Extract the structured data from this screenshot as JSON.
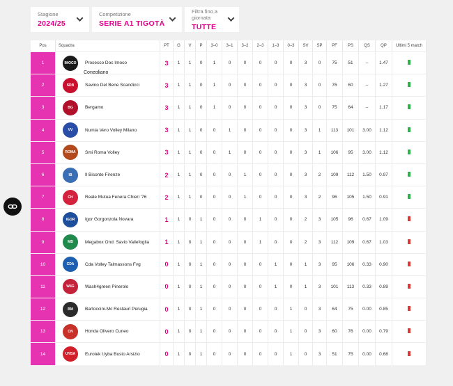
{
  "filters": {
    "stagione": {
      "label": "Stagione",
      "value": "2024/25"
    },
    "competizione": {
      "label": "Competizione",
      "value": "SERIE A1 TIGOTÀ"
    },
    "giornata": {
      "label": "Filtra fino a giornata",
      "value": "TUTTE"
    }
  },
  "table": {
    "headers": [
      "Pos",
      "Squadra",
      "PT",
      "G",
      "V",
      "P",
      "3–0",
      "3–1",
      "3–2",
      "2–3",
      "1–3",
      "0–3",
      "SV",
      "SP",
      "PF",
      "PS",
      "QS",
      "QP",
      "Ultimi 5 match"
    ],
    "rows": [
      {
        "pos": "1",
        "team": "Prosecco Doc Imoco",
        "team2": "Conegliano",
        "logo_color": "#1a1a1a",
        "logo_text": "IMOCO",
        "pt": "3",
        "g": "1",
        "v": "1",
        "p": "0",
        "w30": "1",
        "w31": "0",
        "w32": "0",
        "l23": "0",
        "l13": "0",
        "l03": "0",
        "sv": "3",
        "sp": "0",
        "pf": "75",
        "ps": "51",
        "qs": "–",
        "qp": "1.47",
        "trend": "up"
      },
      {
        "pos": "2",
        "team": "Savino Del Bene Scandicci",
        "team2": "",
        "logo_color": "#c8102e",
        "logo_text": "SDB",
        "pt": "3",
        "g": "1",
        "v": "1",
        "p": "0",
        "w30": "1",
        "w31": "0",
        "w32": "0",
        "l23": "0",
        "l13": "0",
        "l03": "0",
        "sv": "3",
        "sp": "0",
        "pf": "76",
        "ps": "60",
        "qs": "–",
        "qp": "1.27",
        "trend": "up"
      },
      {
        "pos": "3",
        "team": "Bergamo",
        "team2": "",
        "logo_color": "#b0102a",
        "logo_text": "BG",
        "pt": "3",
        "g": "1",
        "v": "1",
        "p": "0",
        "w30": "1",
        "w31": "0",
        "w32": "0",
        "l23": "0",
        "l13": "0",
        "l03": "0",
        "sv": "3",
        "sp": "0",
        "pf": "75",
        "ps": "64",
        "qs": "–",
        "qp": "1.17",
        "trend": "up"
      },
      {
        "pos": "4",
        "team": "Numia Vero Volley Milano",
        "team2": "",
        "logo_color": "#2a4da8",
        "logo_text": "VV",
        "pt": "3",
        "g": "1",
        "v": "1",
        "p": "0",
        "w30": "0",
        "w31": "1",
        "w32": "0",
        "l23": "0",
        "l13": "0",
        "l03": "0",
        "sv": "3",
        "sp": "1",
        "pf": "113",
        "ps": "101",
        "qs": "3.00",
        "qp": "1.12",
        "trend": "up"
      },
      {
        "pos": "5",
        "team": "Smi Roma Volley",
        "team2": "",
        "logo_color": "#b34a1e",
        "logo_text": "ROMA",
        "pt": "3",
        "g": "1",
        "v": "1",
        "p": "0",
        "w30": "0",
        "w31": "1",
        "w32": "0",
        "l23": "0",
        "l13": "0",
        "l03": "0",
        "sv": "3",
        "sp": "1",
        "pf": "106",
        "ps": "95",
        "qs": "3.00",
        "qp": "1.12",
        "trend": "up"
      },
      {
        "pos": "6",
        "team": "Il Bisonte Firenze",
        "team2": "",
        "logo_color": "#3a6fb5",
        "logo_text": "IB",
        "pt": "2",
        "g": "1",
        "v": "1",
        "p": "0",
        "w30": "0",
        "w31": "0",
        "w32": "1",
        "l23": "0",
        "l13": "0",
        "l03": "0",
        "sv": "3",
        "sp": "2",
        "pf": "109",
        "ps": "112",
        "qs": "1.50",
        "qp": "0.97",
        "trend": "up"
      },
      {
        "pos": "7",
        "team": "Reale Mutua Fenera Chieri '76",
        "team2": "",
        "logo_color": "#d4213d",
        "logo_text": "CH",
        "pt": "2",
        "g": "1",
        "v": "1",
        "p": "0",
        "w30": "0",
        "w31": "0",
        "w32": "1",
        "l23": "0",
        "l13": "0",
        "l03": "0",
        "sv": "3",
        "sp": "2",
        "pf": "96",
        "ps": "105",
        "qs": "1.50",
        "qp": "0.91",
        "trend": "up"
      },
      {
        "pos": "8",
        "team": "Igor Gorgonzola Novara",
        "team2": "",
        "logo_color": "#1e4f9c",
        "logo_text": "IGOR",
        "pt": "1",
        "g": "1",
        "v": "0",
        "p": "1",
        "w30": "0",
        "w31": "0",
        "w32": "0",
        "l23": "1",
        "l13": "0",
        "l03": "0",
        "sv": "2",
        "sp": "3",
        "pf": "105",
        "ps": "96",
        "qs": "0.67",
        "qp": "1.09",
        "trend": "down"
      },
      {
        "pos": "9",
        "team": "Megabox Ond. Savio Vallefoglia",
        "team2": "",
        "logo_color": "#1f8a4c",
        "logo_text": "MB",
        "pt": "1",
        "g": "1",
        "v": "0",
        "p": "1",
        "w30": "0",
        "w31": "0",
        "w32": "0",
        "l23": "1",
        "l13": "0",
        "l03": "0",
        "sv": "2",
        "sp": "3",
        "pf": "112",
        "ps": "109",
        "qs": "0.67",
        "qp": "1.03",
        "trend": "down"
      },
      {
        "pos": "10",
        "team": "Cda Volley Talmassons Fvg",
        "team2": "",
        "logo_color": "#1d5fb0",
        "logo_text": "CDA",
        "pt": "0",
        "g": "1",
        "v": "0",
        "p": "1",
        "w30": "0",
        "w31": "0",
        "w32": "0",
        "l23": "0",
        "l13": "1",
        "l03": "0",
        "sv": "1",
        "sp": "3",
        "pf": "95",
        "ps": "106",
        "qs": "0.33",
        "qp": "0.90",
        "trend": "down"
      },
      {
        "pos": "11",
        "team": "Wash4green Pinerolo",
        "team2": "",
        "logo_color": "#c4213a",
        "logo_text": "W4G",
        "pt": "0",
        "g": "1",
        "v": "0",
        "p": "1",
        "w30": "0",
        "w31": "0",
        "w32": "0",
        "l23": "0",
        "l13": "1",
        "l03": "0",
        "sv": "1",
        "sp": "3",
        "pf": "101",
        "ps": "113",
        "qs": "0.33",
        "qp": "0.89",
        "trend": "down"
      },
      {
        "pos": "12",
        "team": "Bartoccini-Mc Restauri Perugia",
        "team2": "",
        "logo_color": "#2b2b2b",
        "logo_text": "BM",
        "pt": "0",
        "g": "1",
        "v": "0",
        "p": "1",
        "w30": "0",
        "w31": "0",
        "w32": "0",
        "l23": "0",
        "l13": "0",
        "l03": "1",
        "sv": "0",
        "sp": "3",
        "pf": "64",
        "ps": "75",
        "qs": "0.00",
        "qp": "0.85",
        "trend": "down"
      },
      {
        "pos": "13",
        "team": "Honda Olivero Cuneo",
        "team2": "",
        "logo_color": "#c8302a",
        "logo_text": "CN",
        "pt": "0",
        "g": "1",
        "v": "0",
        "p": "1",
        "w30": "0",
        "w31": "0",
        "w32": "0",
        "l23": "0",
        "l13": "0",
        "l03": "1",
        "sv": "0",
        "sp": "3",
        "pf": "60",
        "ps": "76",
        "qs": "0.00",
        "qp": "0.79",
        "trend": "down"
      },
      {
        "pos": "14",
        "team": "Eurotek Uyba Busto Arsizio",
        "team2": "",
        "logo_color": "#d11f2b",
        "logo_text": "UYBA",
        "pt": "0",
        "g": "1",
        "v": "0",
        "p": "1",
        "w30": "0",
        "w31": "0",
        "w32": "0",
        "l23": "0",
        "l13": "0",
        "l03": "1",
        "sv": "0",
        "sp": "3",
        "pf": "51",
        "ps": "75",
        "qs": "0.00",
        "qp": "0.68",
        "trend": "down"
      }
    ]
  },
  "colors": {
    "accent": "#e0008a",
    "pos_bg": "#e633b2",
    "win": "#2db34a",
    "loss": "#d83a34"
  },
  "side_button": {
    "icon": "link-icon"
  }
}
